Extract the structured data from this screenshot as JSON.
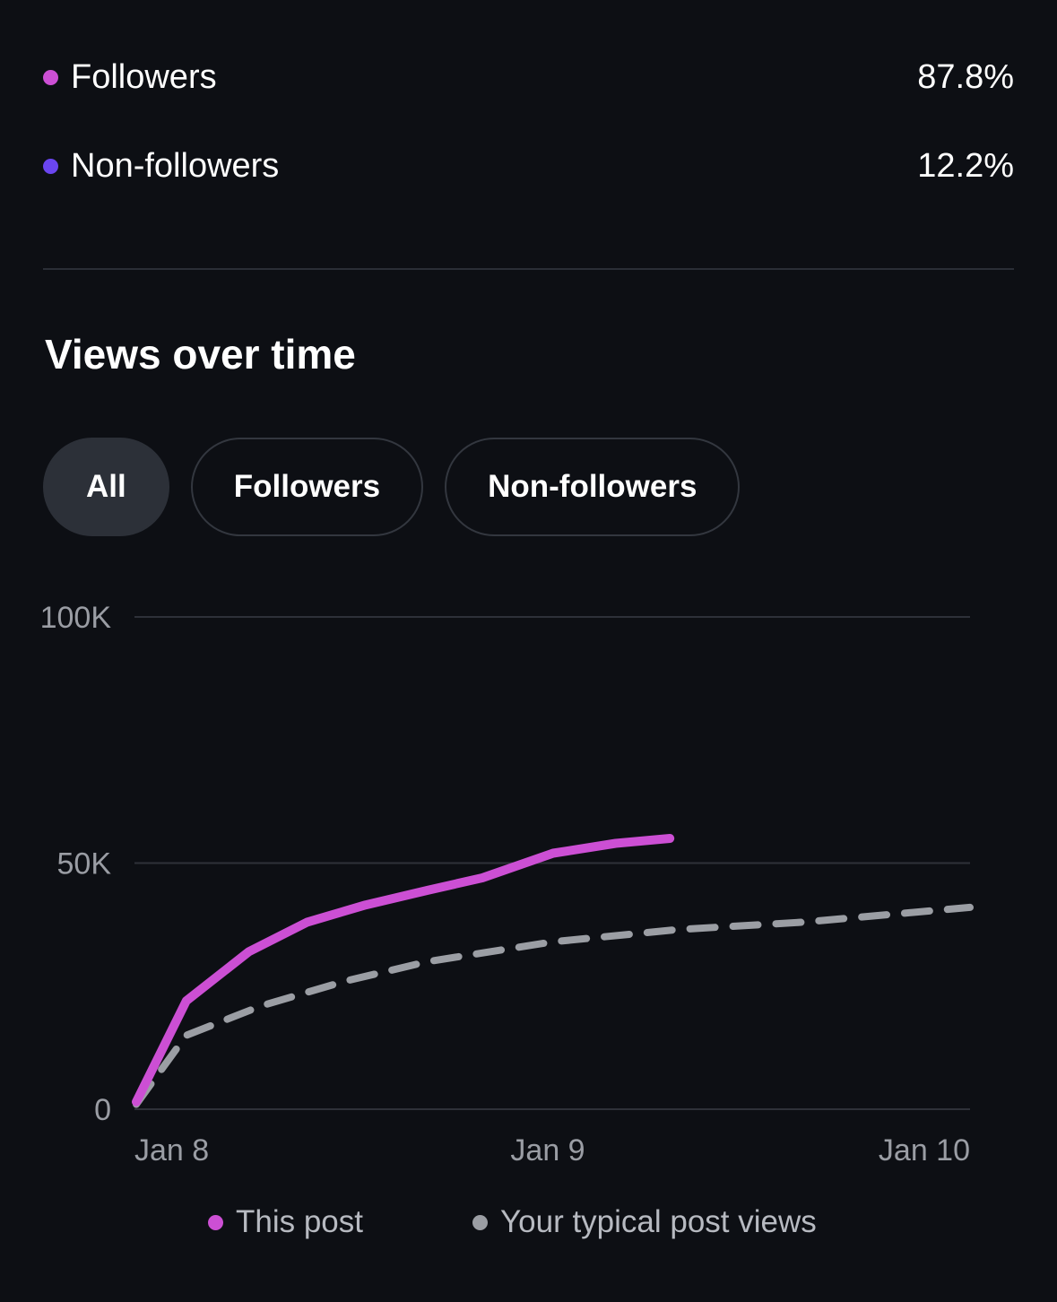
{
  "breakdown": {
    "items": [
      {
        "label": "Followers",
        "value": "87.8%",
        "color": "#cc4fd4"
      },
      {
        "label": "Non-followers",
        "value": "12.2%",
        "color": "#6a45f0"
      }
    ]
  },
  "section": {
    "title": "Views over time"
  },
  "filters": {
    "tabs": [
      "All",
      "Followers",
      "Non-followers"
    ],
    "active": "All"
  },
  "chart_data": {
    "type": "line",
    "xlabel": "",
    "ylabel": "",
    "x_range": [
      "Jan 8",
      "Jan 10"
    ],
    "x_ticks": [
      "Jan 8",
      "Jan 9",
      "Jan 10"
    ],
    "ylim": [
      0,
      100000
    ],
    "y_ticks": [
      "0",
      "50K",
      "100K"
    ],
    "grid": true,
    "legend_position": "bottom",
    "series": [
      {
        "name": "This post",
        "color": "#cc4fd4",
        "style": "solid",
        "points": [
          {
            "day": 0.0,
            "views": 1500
          },
          {
            "day": 0.12,
            "views": 22000
          },
          {
            "day": 0.27,
            "views": 32000
          },
          {
            "day": 0.41,
            "views": 38000
          },
          {
            "day": 0.55,
            "views": 41500
          },
          {
            "day": 0.7,
            "views": 44500
          },
          {
            "day": 0.83,
            "views": 47000
          },
          {
            "day": 1.0,
            "views": 52000
          },
          {
            "day": 1.15,
            "views": 54000
          },
          {
            "day": 1.28,
            "views": 55000
          }
        ]
      },
      {
        "name": "Your typical post views",
        "color": "#9b9ea4",
        "style": "dashed",
        "points": [
          {
            "day": 0.0,
            "views": 1000
          },
          {
            "day": 0.12,
            "views": 15000
          },
          {
            "day": 0.3,
            "views": 21000
          },
          {
            "day": 0.5,
            "views": 26000
          },
          {
            "day": 0.7,
            "views": 30000
          },
          {
            "day": 1.0,
            "views": 34000
          },
          {
            "day": 1.3,
            "views": 36500
          },
          {
            "day": 1.6,
            "views": 38000
          },
          {
            "day": 2.0,
            "views": 41000
          }
        ]
      }
    ]
  }
}
